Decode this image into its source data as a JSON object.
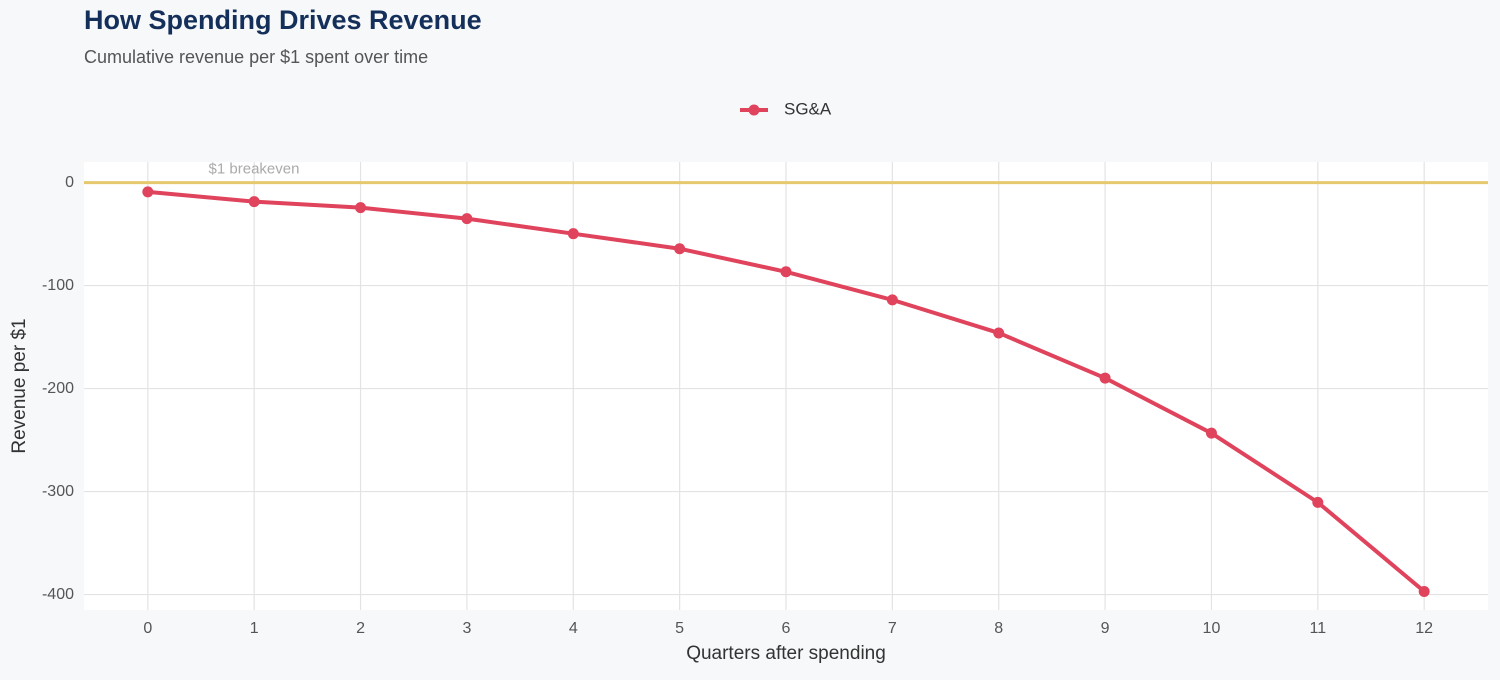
{
  "chart_data": {
    "type": "line",
    "title": "How Spending Drives Revenue",
    "subtitle": "Cumulative revenue per $1 spent over time",
    "x_label": "Quarters after spending",
    "y_label": "Revenue per $1",
    "x": [
      0,
      1,
      2,
      3,
      4,
      5,
      6,
      7,
      8,
      9,
      10,
      11,
      12
    ],
    "series": [
      {
        "name": "SG&A",
        "color": "#e0435c",
        "values": [
          -9,
          -18.5,
          -24.3,
          -35,
          -49.6,
          -64.2,
          -86.6,
          -113.9,
          -146,
          -189.8,
          -243.3,
          -310.5,
          -397
        ]
      }
    ],
    "xlim": [
      -0.6,
      12.6
    ],
    "xticks": [
      0,
      1,
      2,
      3,
      4,
      5,
      6,
      7,
      8,
      9,
      10,
      11,
      12
    ],
    "ylim": [
      -415,
      20
    ],
    "yticks": [
      0,
      -100,
      -200,
      -300,
      -400
    ],
    "grid": true,
    "legend": "top",
    "reference_line": {
      "value": 0,
      "label": "$1 breakeven",
      "color": "#e6c86e"
    }
  }
}
